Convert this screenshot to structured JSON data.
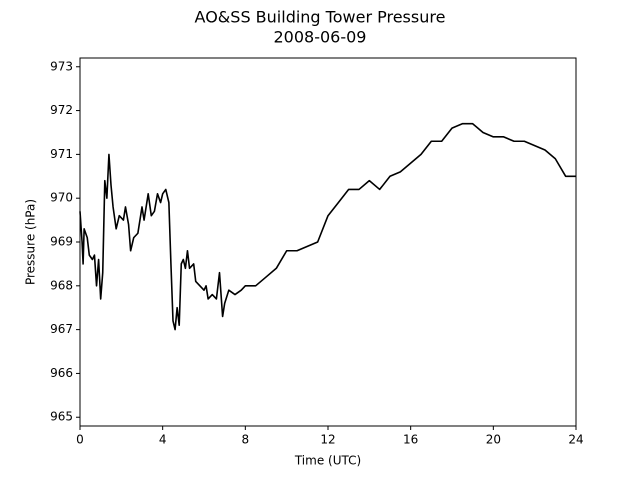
{
  "chart_data": {
    "type": "line",
    "title": "AO&SS Building Tower Pressure",
    "subtitle": "2008-06-09",
    "x_label": "Time (UTC)",
    "y_label": "Pressure (hPa)",
    "color": "#000000",
    "x": [
      0,
      0.1,
      0.15,
      0.2,
      0.35,
      0.45,
      0.6,
      0.7,
      0.8,
      0.9,
      1.0,
      1.1,
      1.2,
      1.3,
      1.4,
      1.5,
      1.6,
      1.75,
      1.9,
      2.1,
      2.2,
      2.35,
      2.45,
      2.6,
      2.8,
      3.0,
      3.1,
      3.3,
      3.45,
      3.6,
      3.75,
      3.9,
      4.0,
      4.15,
      4.3,
      4.4,
      4.5,
      4.6,
      4.7,
      4.8,
      4.9,
      5.0,
      5.1,
      5.2,
      5.3,
      5.5,
      5.6,
      5.8,
      6.0,
      6.1,
      6.2,
      6.4,
      6.6,
      6.75,
      6.9,
      7.0,
      7.2,
      7.5,
      7.8,
      8.0,
      8.5,
      9.0,
      9.5,
      10.0,
      10.5,
      11.0,
      11.5,
      12.0,
      12.5,
      13.0,
      13.5,
      14.0,
      14.5,
      15.0,
      15.5,
      16.0,
      16.5,
      17.0,
      17.5,
      18.0,
      18.5,
      19.0,
      19.5,
      20.0,
      20.5,
      21.0,
      21.5,
      22.0,
      22.5,
      23.0,
      23.5,
      24.0
    ],
    "values": [
      969.7,
      969.0,
      968.5,
      969.3,
      969.1,
      968.7,
      968.6,
      968.7,
      968.0,
      968.6,
      967.7,
      968.3,
      970.4,
      970.0,
      971.0,
      970.3,
      969.8,
      969.3,
      969.6,
      969.5,
      969.8,
      969.4,
      968.8,
      969.1,
      969.2,
      969.8,
      969.5,
      970.1,
      969.6,
      969.7,
      970.1,
      969.9,
      970.1,
      970.2,
      969.9,
      968.5,
      967.2,
      967.0,
      967.5,
      967.1,
      968.5,
      968.6,
      968.4,
      968.8,
      968.4,
      968.5,
      968.1,
      968.0,
      967.9,
      968.0,
      967.7,
      967.8,
      967.7,
      968.3,
      967.3,
      967.6,
      967.9,
      967.8,
      967.9,
      968.0,
      968.0,
      968.2,
      968.4,
      968.8,
      968.8,
      968.9,
      969.0,
      969.6,
      969.9,
      970.2,
      970.2,
      970.4,
      970.2,
      970.5,
      970.6,
      970.8,
      971.0,
      971.3,
      971.3,
      971.6,
      971.7,
      971.7,
      971.5,
      971.4,
      971.4,
      971.3,
      971.3,
      971.2,
      971.1,
      970.9,
      970.5,
      970.5
    ],
    "xlim": [
      0,
      24
    ],
    "xticks": [
      0,
      4,
      8,
      12,
      16,
      20,
      24
    ],
    "ylim": [
      964.8,
      973.2
    ],
    "yticks": [
      965,
      966,
      967,
      968,
      969,
      970,
      971,
      972,
      973
    ]
  }
}
